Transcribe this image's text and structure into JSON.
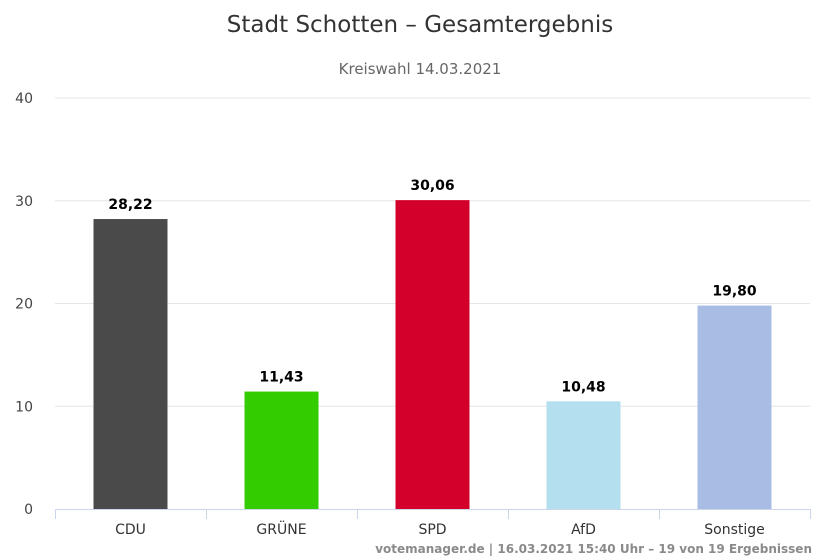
{
  "chart_data": {
    "type": "bar",
    "title": "Stadt Schotten – Gesamtergebnis",
    "subtitle": "Kreiswahl 14.03.2021",
    "categories": [
      "CDU",
      "GRÜNE",
      "SPD",
      "AfD",
      "Sonstige"
    ],
    "values": [
      28.22,
      11.43,
      30.06,
      10.48,
      19.8
    ],
    "value_labels": [
      "28,22",
      "11,43",
      "30,06",
      "10,48",
      "19,80"
    ],
    "colors": [
      "#4a4a4a",
      "#33cc00",
      "#d4002c",
      "#b3dfee",
      "#a9bde4"
    ],
    "ylim": [
      0,
      40
    ],
    "yticks": [
      "0",
      "10",
      "20",
      "30",
      "40"
    ],
    "grid": true,
    "legend": "none"
  },
  "credits": "votemanager.de | 16.03.2021 15:40 Uhr – 19 von 19 Ergebnissen"
}
